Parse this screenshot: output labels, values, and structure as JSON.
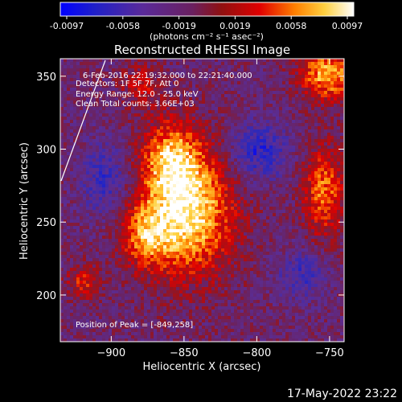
{
  "colorbar": {
    "ticks": [
      "-0.0097",
      "-0.0058",
      "-0.0019",
      "0.0019",
      "0.0058",
      "0.0097"
    ],
    "units_label": "(photons cm⁻² s⁻¹ asec⁻²)"
  },
  "chart_data": {
    "type": "heatmap",
    "title": "Reconstructed RHESSI Image",
    "xlabel": "Heliocentric X (arcsec)",
    "ylabel": "Heliocentric Y (arcsec)",
    "xlim": [
      -935,
      -740
    ],
    "ylim": [
      168,
      362
    ],
    "x_ticks": [
      -900,
      -850,
      -800,
      -750
    ],
    "y_ticks": [
      200,
      250,
      300,
      350
    ],
    "x_tick_labels": [
      "−900",
      "−850",
      "−800",
      "−750"
    ],
    "y_tick_labels": [
      "200",
      "250",
      "300",
      "350"
    ],
    "value_range": [
      -0.0097,
      0.0097
    ],
    "colormap": "purple-red-yellow",
    "grid": false,
    "annotations": [
      "6-Feb-2016 22:19:32.000 to 22:21:40.000",
      "Detectors: 1F 5F 7F, Att 0",
      "Energy Range: 12.0 - 25.0 keV",
      "Clean     Total counts: 3.66E+03"
    ],
    "peak_label": "Position of Peak = [-849,258]",
    "peak": [
      -849,
      258
    ]
  },
  "footer": {
    "date": "17-May-2022 23:22"
  }
}
